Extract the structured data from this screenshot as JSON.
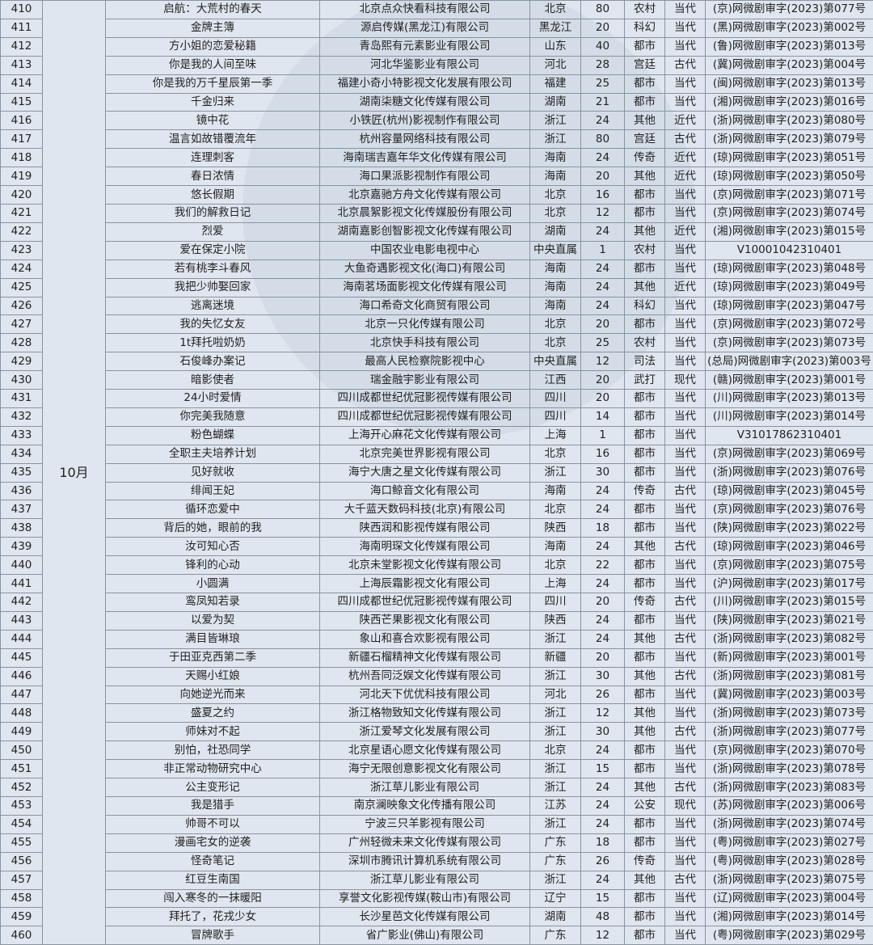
{
  "month": "10月",
  "rows": [
    [
      "410",
      "启航：大荒村的春天",
      "北京点众快看科技有限公司",
      "北京",
      "80",
      "农村",
      "当代",
      "(京)网微剧审字(2023)第077号"
    ],
    [
      "411",
      "金牌主簿",
      "源启传媒(黑龙江)有限公司",
      "黑龙江",
      "20",
      "科幻",
      "当代",
      "(黑)网微剧审字(2023)第002号"
    ],
    [
      "412",
      "方小姐的恋爱秘籍",
      "青岛熙有元素影业有限公司",
      "山东",
      "40",
      "都市",
      "当代",
      "(鲁)网微剧审字(2023)第013号"
    ],
    [
      "413",
      "你是我的人间至味",
      "河北华鉴影业有限公司",
      "河北",
      "28",
      "宫廷",
      "古代",
      "(冀)网微剧审字(2023)第004号"
    ],
    [
      "414",
      "你是我的万千星辰第一季",
      "福建小奇小特影视文化发展有限公司",
      "福建",
      "25",
      "都市",
      "当代",
      "(闽)网微剧审字(2023)第013号"
    ],
    [
      "415",
      "千金归来",
      "湖南柒糖文化传媒有限公司",
      "湖南",
      "21",
      "都市",
      "当代",
      "(湘)网微剧审字(2023)第016号"
    ],
    [
      "416",
      "镜中花",
      "小铁匠(杭州)影视制作有限公司",
      "浙江",
      "24",
      "其他",
      "近代",
      "(浙)网微剧审字(2023)第080号"
    ],
    [
      "417",
      "温言如故错覆流年",
      "杭州容量网络科技有限公司",
      "浙江",
      "80",
      "宫廷",
      "古代",
      "(浙)网微剧审字(2023)第079号"
    ],
    [
      "418",
      "连理刺客",
      "海南瑞吉嘉年华文化传媒有限公司",
      "海南",
      "24",
      "传奇",
      "近代",
      "(琼)网微剧审字(2023)第051号"
    ],
    [
      "419",
      "春日浓情",
      "海口果派影视制作有限公司",
      "海南",
      "20",
      "其他",
      "近代",
      "(琼)网微剧审字(2023)第050号"
    ],
    [
      "420",
      "悠长假期",
      "北京嘉驰方舟文化传媒有限公司",
      "北京",
      "16",
      "都市",
      "当代",
      "(京)网微剧审字(2023)第071号"
    ],
    [
      "421",
      "我们的解救日记",
      "北京晨絮影视文化传媒股份有限公司",
      "北京",
      "12",
      "都市",
      "当代",
      "(京)网微剧审字(2023)第074号"
    ],
    [
      "422",
      "烈爱",
      "湖南嘉影创智影视文化传媒有限公司",
      "湖南",
      "24",
      "其他",
      "近代",
      "(湘)网微剧审字(2023)第015号"
    ],
    [
      "423",
      "爱在保定小院",
      "中国农业电影电视中心",
      "中央直属",
      "1",
      "农村",
      "当代",
      "V10001042310401"
    ],
    [
      "424",
      "若有桃李斗春风",
      "大鱼奇遇影视文化(海口)有限公司",
      "海南",
      "24",
      "都市",
      "当代",
      "(琼)网微剧审字(2023)第048号"
    ],
    [
      "425",
      "我把少帅娶回家",
      "海南茗场面影视文化传媒有限公司",
      "海南",
      "24",
      "其他",
      "近代",
      "(琼)网微剧审字(2023)第049号"
    ],
    [
      "426",
      "逃离迷境",
      "海口希奇文化商贸有限公司",
      "海南",
      "24",
      "科幻",
      "当代",
      "(琼)网微剧审字(2023)第047号"
    ],
    [
      "427",
      "我的失忆女友",
      "北京一只化传媒有限公司",
      "北京",
      "20",
      "都市",
      "当代",
      "(京)网微剧审字(2023)第072号"
    ],
    [
      "428",
      "1t拜托啦奶奶",
      "北京快手科技有限公司",
      "北京",
      "25",
      "农村",
      "当代",
      "(京)网微剧审字(2023)第073号"
    ],
    [
      "429",
      "石俊峰办案记",
      "最高人民检察院影视中心",
      "中央直属",
      "12",
      "司法",
      "当代",
      "(总局)网微剧审字(2023)第003号"
    ],
    [
      "430",
      "暗影使者",
      "瑞金融宇影业有限公司",
      "江西",
      "20",
      "武打",
      "现代",
      "(赣)网微剧审字(2023)第001号"
    ],
    [
      "431",
      "24小时爱情",
      "四川成都世纪优冠影视传媒有限公司",
      "四川",
      "20",
      "都市",
      "当代",
      "(川)网微剧审字(2023)第013号"
    ],
    [
      "432",
      "你完美我随意",
      "四川成都世纪优冠影视传媒有限公司",
      "四川",
      "14",
      "都市",
      "当代",
      "(川)网微剧审字(2023)第014号"
    ],
    [
      "433",
      "粉色蝴蝶",
      "上海开心麻花文化传媒有限公司",
      "上海",
      "1",
      "都市",
      "当代",
      "V31017862310401"
    ],
    [
      "434",
      "全职主夫培养计划",
      "北京完美世界影视有限公司",
      "北京",
      "16",
      "都市",
      "当代",
      "(京)网微剧审字(2023)第069号"
    ],
    [
      "435",
      "见好就收",
      "海宁大唐之星文化传媒有限公司",
      "浙江",
      "30",
      "都市",
      "当代",
      "(浙)网微剧审字(2023)第076号"
    ],
    [
      "436",
      "绯闻王妃",
      "海口鲸音文化有限公司",
      "海南",
      "24",
      "传奇",
      "古代",
      "(琼)网微剧审字(2023)第045号"
    ],
    [
      "437",
      "循环恋爱中",
      "大千蓝天数码科技(北京)有限公司",
      "北京",
      "24",
      "都市",
      "当代",
      "(京)网微剧审字(2023)第076号"
    ],
    [
      "438",
      "背后的她，眼前的我",
      "陕西润和影视传媒有限公司",
      "陕西",
      "18",
      "都市",
      "当代",
      "(陕)网微剧审字(2023)第022号"
    ],
    [
      "439",
      "汝可知心否",
      "海南明琛文化传媒有限公司",
      "海南",
      "24",
      "其他",
      "古代",
      "(琼)网微剧审字(2023)第046号"
    ],
    [
      "440",
      "锋利的心动",
      "北京未堂影视文化传媒有限公司",
      "北京",
      "22",
      "都市",
      "当代",
      "(京)网微剧审字(2023)第075号"
    ],
    [
      "441",
      "小圆满",
      "上海辰霜影视文化有限公司",
      "上海",
      "24",
      "都市",
      "当代",
      "(沪)网微剧审字(2023)第017号"
    ],
    [
      "442",
      "鸾凤知若录",
      "四川成都世纪优冠影视传媒有限公司",
      "四川",
      "20",
      "传奇",
      "古代",
      "(川)网微剧审字(2023)第015号"
    ],
    [
      "443",
      "以爱为契",
      "陕西芒果影视文化有限公司",
      "陕西",
      "24",
      "都市",
      "当代",
      "(陕)网微剧审字(2023)第021号"
    ],
    [
      "444",
      "满目皆琳琅",
      "象山和喜合欢影视有限公司",
      "浙江",
      "24",
      "其他",
      "古代",
      "(浙)网微剧审字(2023)第082号"
    ],
    [
      "445",
      "于田亚克西第二季",
      "新疆石榴精神文化传媒有限公司",
      "新疆",
      "20",
      "都市",
      "当代",
      "(新)网微剧审字(2023)第001号"
    ],
    [
      "446",
      "天赐小红娘",
      "杭州吾同泛娱文化传媒有限公司",
      "浙江",
      "30",
      "其他",
      "古代",
      "(浙)网微剧审字(2023)第081号"
    ],
    [
      "447",
      "向她逆光而来",
      "河北天下优优科技有限公司",
      "河北",
      "26",
      "都市",
      "当代",
      "(冀)网微剧审字(2023)第003号"
    ],
    [
      "448",
      "盛夏之约",
      "浙江格物致知文化传媒有限公司",
      "浙江",
      "12",
      "其他",
      "当代",
      "(浙)网微剧审字(2023)第073号"
    ],
    [
      "449",
      "师妹对不起",
      "浙江爱琴文化发展有限公司",
      "浙江",
      "30",
      "其他",
      "古代",
      "(浙)网微剧审字(2023)第077号"
    ],
    [
      "450",
      "别怕，社恐同学",
      "北京星语心愿文化传媒有限公司",
      "北京",
      "24",
      "都市",
      "当代",
      "(京)网微剧审字(2023)第070号"
    ],
    [
      "451",
      "非正常动物研究中心",
      "海宁无限创意影视文化有限公司",
      "浙江",
      "15",
      "都市",
      "当代",
      "(浙)网微剧审字(2023)第078号"
    ],
    [
      "452",
      "公主变形记",
      "浙江草儿影业有限公司",
      "浙江",
      "24",
      "其他",
      "古代",
      "(浙)网微剧审字(2023)第083号"
    ],
    [
      "453",
      "我是猎手",
      "南京澜映象文化传播有限公司",
      "江苏",
      "24",
      "公安",
      "现代",
      "(苏)网微剧审字(2023)第006号"
    ],
    [
      "454",
      "帅哥不可以",
      "宁波三只羊影视有限公司",
      "浙江",
      "24",
      "都市",
      "当代",
      "(浙)网微剧审字(2023)第074号"
    ],
    [
      "455",
      "漫画宅女的逆袭",
      "广州轻微未来文化传媒有限公司",
      "广东",
      "18",
      "都市",
      "当代",
      "(粤)网微剧审字(2023)第027号"
    ],
    [
      "456",
      "怪奇笔记",
      "深圳市腾讯计算机系统有限公司",
      "广东",
      "26",
      "传奇",
      "当代",
      "(粤)网微剧审字(2023)第028号"
    ],
    [
      "457",
      "红豆生南国",
      "浙江草儿影业有限公司",
      "浙江",
      "24",
      "其他",
      "古代",
      "(浙)网微剧审字(2023)第075号"
    ],
    [
      "458",
      "闯入寒冬的一抹暖阳",
      "享誉文化影视传媒(鞍山市)有限公司",
      "辽宁",
      "15",
      "都市",
      "当代",
      "(辽)网微剧审字(2023)第004号"
    ],
    [
      "459",
      "拜托了，花戎少女",
      "长沙星芭文化传媒有限公司",
      "湖南",
      "48",
      "都市",
      "当代",
      "(湘)网微剧审字(2023)第014号"
    ],
    [
      "460",
      "冒牌歌手",
      "省广影业(佛山)有限公司",
      "广东",
      "12",
      "都市",
      "当代",
      "(粤)网微剧审字(2023)第029号"
    ]
  ]
}
